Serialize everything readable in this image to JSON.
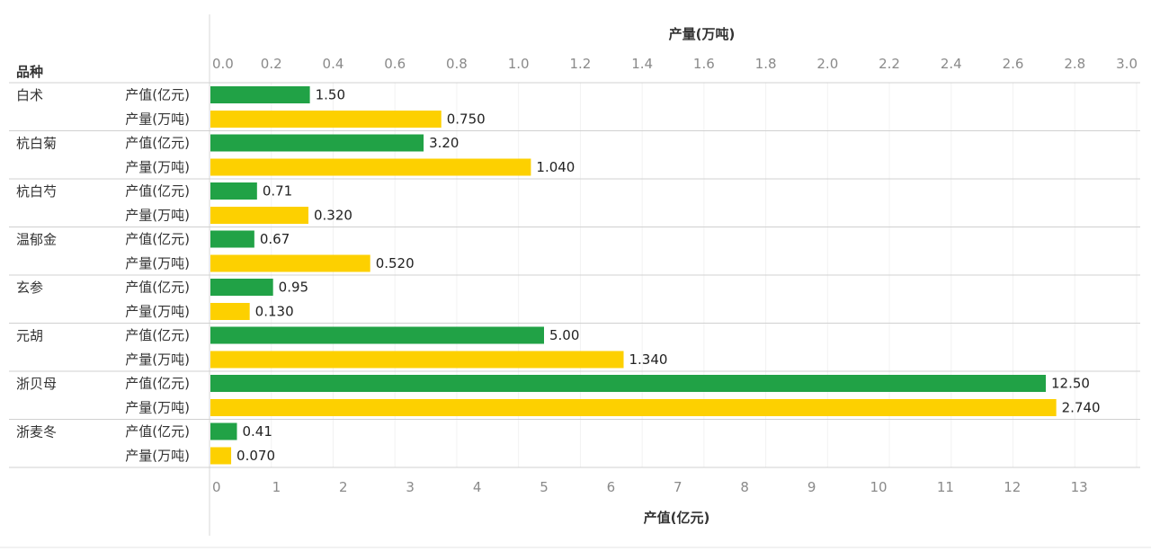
{
  "chart_data": {
    "type": "bar",
    "orientation": "horizontal",
    "dimension_header": "品种",
    "categories": [
      "白术",
      "杭白菊",
      "杭白芍",
      "温郁金",
      "玄参",
      "元胡",
      "浙贝母",
      "浙麦冬"
    ],
    "series": [
      {
        "name": "产值(亿元)",
        "values": [
          1.5,
          3.2,
          0.71,
          0.67,
          0.95,
          5.0,
          12.5,
          0.41
        ],
        "value_labels": [
          "1.50",
          "3.20",
          "0.71",
          "0.67",
          "0.95",
          "5.00",
          "12.50",
          "0.41"
        ],
        "color": "#21a246",
        "axis": "bottom"
      },
      {
        "name": "产量(万吨)",
        "values": [
          0.75,
          1.04,
          0.32,
          0.52,
          0.13,
          1.34,
          2.74,
          0.07
        ],
        "value_labels": [
          "0.750",
          "1.040",
          "0.320",
          "0.520",
          "0.130",
          "1.340",
          "2.740",
          "0.070"
        ],
        "color": "#fdd000",
        "axis": "top"
      }
    ],
    "top_axis": {
      "title": "产量(万吨)",
      "range": [
        0,
        3.0
      ],
      "ticks": [
        "0.0",
        "0.2",
        "0.4",
        "0.6",
        "0.8",
        "1.0",
        "1.2",
        "1.4",
        "1.6",
        "1.8",
        "2.0",
        "2.2",
        "2.4",
        "2.6",
        "2.8",
        "3.0"
      ]
    },
    "bottom_axis": {
      "title": "产值(亿元)",
      "range": [
        0,
        14.2
      ],
      "ticks": [
        "0",
        "1",
        "2",
        "3",
        "4",
        "5",
        "6",
        "7",
        "8",
        "9",
        "10",
        "11",
        "12",
        "13"
      ]
    },
    "gridlines": true,
    "legend": "none"
  }
}
